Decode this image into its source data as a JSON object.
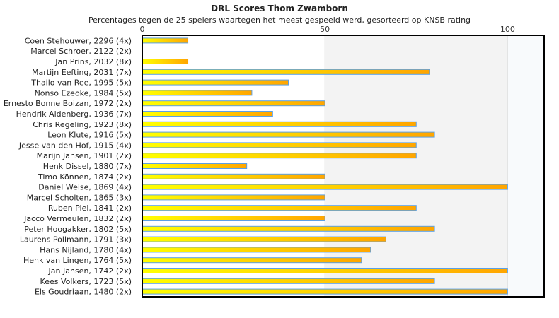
{
  "chart_data": {
    "type": "bar",
    "orientation": "horizontal",
    "title": "DRL Scores Thom Zwamborn",
    "subtitle": "Percentages tegen de 25 spelers waartegen het meest gespeeld werd, gesorteerd op KNSB rating",
    "xlim": [
      0,
      110
    ],
    "xticks": [
      "0",
      "50",
      "100"
    ],
    "categories": [
      "Coen Stehouwer, 2296 (4x)",
      "Marcel Schroer, 2122 (2x)",
      "Jan Prins, 2032 (8x)",
      "Martijn Eefting, 2031 (7x)",
      "Thailo van Ree, 1995 (5x)",
      "Nonso Ezeoke, 1984 (5x)",
      "Ernesto Bonne Boizan, 1972 (2x)",
      "Hendrik Aldenberg, 1936 (7x)",
      "Chris Regeling, 1923 (8x)",
      "Leon Klute, 1916 (5x)",
      "Jesse van den Hof, 1915 (4x)",
      "Marijn Jansen, 1901 (2x)",
      "Henk Dissel, 1880 (7x)",
      "Timo Können, 1874 (2x)",
      "Daniel Weise, 1869 (4x)",
      "Marcel Scholten, 1865 (3x)",
      "Ruben Piel, 1841 (2x)",
      "Jacco Vermeulen, 1832 (2x)",
      "Peter Hoogakker, 1802 (5x)",
      "Laurens Pollmann, 1791 (3x)",
      "Hans Nijland, 1780 (4x)",
      "Henk van Lingen, 1764 (5x)",
      "Jan Jansen, 1742 (2x)",
      "Kees Volkers, 1723 (5x)",
      "Els Goudriaan, 1480 (2x)"
    ],
    "values": [
      12.5,
      0,
      12.5,
      78.6,
      40,
      30,
      50,
      35.7,
      75,
      80,
      75,
      75,
      28.6,
      50,
      100,
      50,
      75,
      50,
      80,
      66.7,
      62.5,
      60,
      100,
      80,
      100
    ],
    "colors": {
      "bar_start": "#ffff00",
      "bar_end": "#ffa500",
      "bar_border": "#5aa0e6"
    }
  }
}
